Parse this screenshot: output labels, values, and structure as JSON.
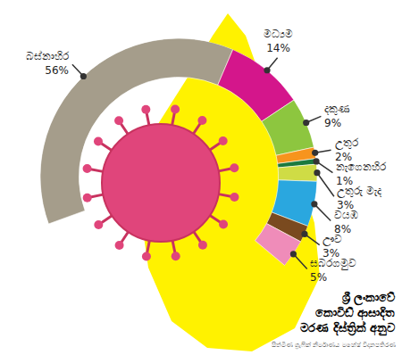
{
  "chart_data": {
    "type": "donut",
    "title": "ශ්‍රී ලංකාවේ කොවිඩ් ආසාදිත මරණ දිස්ත්‍රික් අනුව",
    "source": "සිත්මිණ ග්‍රැෆික් නිර්මාණය මහේෂ් විදානපතිරණ",
    "categories": [
      "බස්නාහිර",
      "මධ්‍යම",
      "දකුණ",
      "උතුර",
      "නැගෙනහිර",
      "උතුරු මැද",
      "වයඹ",
      "ඌව",
      "සබරගමුව"
    ],
    "values": [
      56,
      14,
      9,
      2,
      1,
      3,
      8,
      3,
      5
    ],
    "value_labels": [
      "56%",
      "14%",
      "9%",
      "2%",
      "1%",
      "3%",
      "8%",
      "3%",
      "5%"
    ],
    "colors": [
      "#a59d8b",
      "#d4168b",
      "#8dc63f",
      "#f7941d",
      "#1b7a3e",
      "#cfdc45",
      "#2aa7df",
      "#7a4a1f",
      "#ef8cb9"
    ],
    "data_labels": true
  }
}
